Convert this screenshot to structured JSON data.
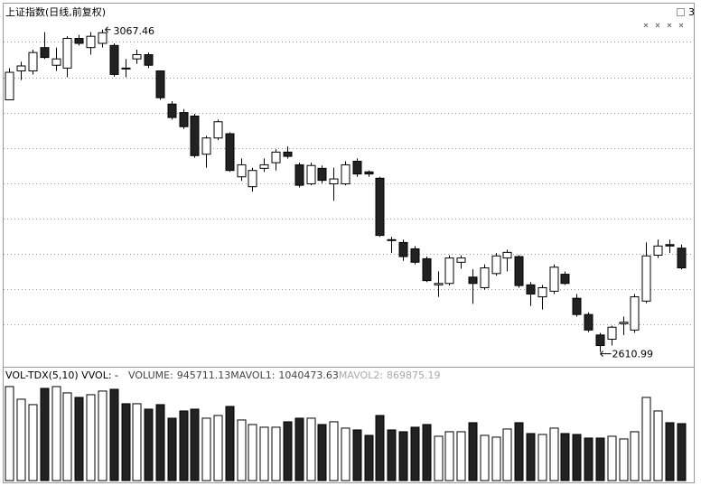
{
  "chart_data": [
    {
      "type": "candlestick",
      "title": "上证指数(日线,前复权)",
      "corner_label": "3",
      "open": [
        2968,
        3009,
        3009,
        3042,
        3017,
        3013,
        3055,
        3042,
        3048,
        3045,
        3013,
        3026,
        3032,
        3009,
        2962,
        2950,
        2945,
        2891,
        2914,
        2920,
        2859,
        2845,
        2871,
        2879,
        2894,
        2876,
        2849,
        2871,
        2849,
        2849,
        2881,
        2866,
        2857,
        2770,
        2766,
        2757,
        2743,
        2706,
        2708,
        2738,
        2717,
        2702,
        2722,
        2744,
        2746,
        2706,
        2689,
        2697,
        2721,
        2687,
        2664,
        2635,
        2629,
        2651,
        2642,
        2683,
        2748,
        2763,
        2758
      ],
      "high": [
        3013,
        3022,
        3039,
        3064,
        3042,
        3058,
        3060,
        3064,
        3067.46,
        3048,
        3026,
        3039,
        3035,
        3009,
        2966,
        2955,
        2948,
        2917,
        2940,
        2922,
        2885,
        2872,
        2885,
        2898,
        2902,
        2879,
        2879,
        2875,
        2872,
        2881,
        2885,
        2868,
        2859,
        2774,
        2770,
        2761,
        2746,
        2725,
        2748,
        2748,
        2728,
        2735,
        2751,
        2756,
        2748,
        2710,
        2706,
        2735,
        2725,
        2693,
        2667,
        2638,
        2648,
        2661,
        2693,
        2766,
        2770,
        2770,
        2763
      ],
      "low": [
        2968,
        2996,
        3004,
        3026,
        3009,
        3000,
        3045,
        3032,
        3042,
        3001,
        3000,
        3019,
        3013,
        2968,
        2940,
        2927,
        2886,
        2872,
        2911,
        2866,
        2853,
        2838,
        2866,
        2868,
        2885,
        2844,
        2847,
        2850,
        2825,
        2847,
        2859,
        2859,
        2774,
        2751,
        2740,
        2735,
        2710,
        2689,
        2705,
        2729,
        2679,
        2699,
        2719,
        2725,
        2702,
        2676,
        2671,
        2693,
        2706,
        2661,
        2639,
        2610.99,
        2620,
        2635,
        2638,
        2680,
        2744,
        2751,
        2728
      ],
      "close": [
        3007,
        3016,
        3035,
        3028,
        3026,
        3055,
        3048,
        3058,
        3063,
        3004,
        3012,
        3032,
        3017,
        2971,
        2943,
        2930,
        2889,
        2914,
        2937,
        2868,
        2876,
        2868,
        2876,
        2894,
        2888,
        2847,
        2875,
        2854,
        2856,
        2876,
        2863,
        2863,
        2776,
        2769,
        2746,
        2738,
        2712,
        2708,
        2744,
        2744,
        2708,
        2730,
        2747,
        2752,
        2705,
        2693,
        2702,
        2731,
        2708,
        2664,
        2642,
        2620,
        2646,
        2653,
        2689,
        2747,
        2761,
        2761,
        2730
      ],
      "ylim": [
        2590,
        3103
      ],
      "yticks": [
        2650,
        2700,
        2750,
        2800,
        2850,
        2900,
        2950,
        3000,
        3050
      ],
      "grid": true,
      "up_color": "#ffffff",
      "down_color": "#222222",
      "edge_color": "#000000"
    },
    {
      "type": "bar",
      "title": "VOL-TDX(5,10) VVOL: -",
      "series": [
        {
          "name": "VOLUME:",
          "color": "#444444",
          "values": [
            1561000,
            1351000,
            1261000,
            1531000,
            1561000,
            1456000,
            1381000,
            1426000,
            1486000,
            1516000,
            1276000,
            1276000,
            1186000,
            1261000,
            1036000,
            1156000,
            1186000,
            1036000,
            1081000,
            1231000,
            1006000,
            931000,
            886000,
            886000,
            976000,
            1036000,
            1036000,
            931000,
            976000,
            871000,
            841000,
            751000,
            1081000,
            841000,
            811000,
            886000,
            931000,
            736000,
            811000,
            811000,
            961000,
            751000,
            721000,
            856000,
            961000,
            781000,
            766000,
            871000,
            781000,
            766000,
            706000,
            706000,
            736000,
            691000,
            811000,
            1381000,
            1156000,
            961000,
            945711.13
          ]
        }
      ],
      "indicators": [
        {
          "name": "MAVOL1:",
          "value": 1040473.63,
          "color": "#444444"
        },
        {
          "name": "MAVOL2:",
          "value": 869875.19,
          "color": "#aaaaaa"
        }
      ],
      "ylim": [
        0,
        1890000
      ]
    }
  ]
}
